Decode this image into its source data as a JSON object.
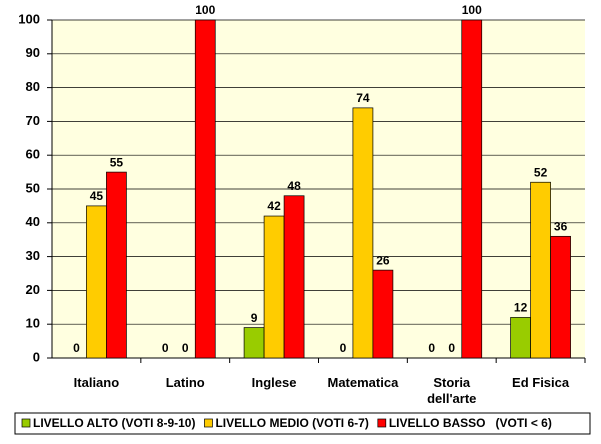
{
  "chart_data": {
    "type": "bar",
    "categories": [
      "Italiano",
      "Latino",
      "Inglese",
      "Matematica",
      "Storia dell'arte",
      "Ed Fisica"
    ],
    "series": [
      {
        "name": "LIVELLO ALTO (VOTI 8-9-10)",
        "color": "#99cc00",
        "values": [
          0,
          0,
          9,
          0,
          0,
          12
        ]
      },
      {
        "name": "LIVELLO MEDIO (VOTI 6-7)",
        "color": "#ffcc00",
        "values": [
          45,
          0,
          42,
          74,
          0,
          52
        ]
      },
      {
        "name": "LIVELLO BASSO   (VOTI < 6)",
        "color": "#ff0000",
        "values": [
          55,
          100,
          48,
          26,
          100,
          36
        ]
      }
    ],
    "ylim": [
      0,
      100
    ],
    "yticks": [
      0,
      10,
      20,
      30,
      40,
      50,
      60,
      70,
      80,
      90,
      100
    ],
    "grid": true,
    "legend": "bottom"
  }
}
